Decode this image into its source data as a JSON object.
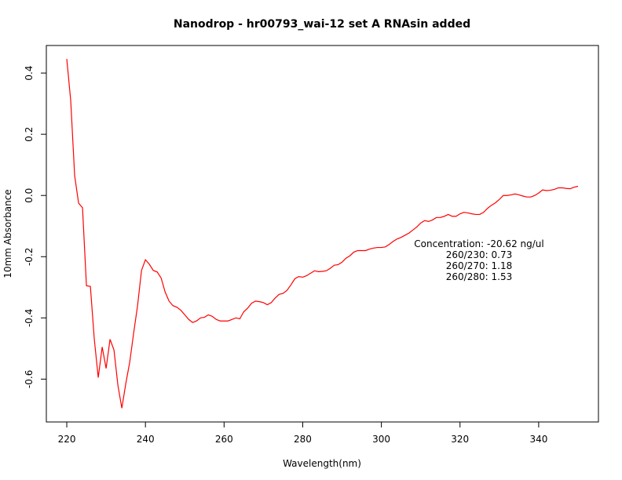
{
  "chart_data": {
    "type": "line",
    "title": "Nanodrop - hr00793_wai-12 set A RNAsin added",
    "x_label": "Wavelength(nm)",
    "y_label": "10mm Absorbance",
    "annotations": [
      "Concentration: -20.62 ng/ul",
      "260/230: 0.73",
      "260/270: 1.18",
      "260/280: 1.53"
    ],
    "x": [
      220,
      221,
      222,
      223,
      224,
      225,
      226,
      227,
      228,
      229,
      230,
      231,
      232,
      233,
      234,
      235,
      236,
      237,
      238,
      239,
      240,
      241,
      242,
      243,
      244,
      245,
      246,
      247,
      248,
      249,
      250,
      251,
      252,
      253,
      254,
      255,
      256,
      257,
      258,
      259,
      260,
      261,
      262,
      263,
      264,
      265,
      266,
      267,
      268,
      269,
      270,
      271,
      272,
      273,
      274,
      275,
      276,
      277,
      278,
      279,
      280,
      281,
      282,
      283,
      284,
      285,
      286,
      287,
      288,
      289,
      290,
      291,
      292,
      293,
      294,
      295,
      296,
      297,
      298,
      299,
      300,
      301,
      302,
      303,
      304,
      305,
      306,
      307,
      308,
      309,
      310,
      311,
      312,
      313,
      314,
      315,
      316,
      317,
      318,
      319,
      320,
      321,
      322,
      323,
      324,
      325,
      326,
      327,
      328,
      329,
      330,
      331,
      332,
      333,
      334,
      335,
      336,
      337,
      338,
      339,
      340,
      341,
      342,
      343,
      344,
      345,
      346,
      347,
      348,
      349,
      350
    ],
    "series": [
      {
        "color": "#ff0000",
        "values": [
          0.446,
          0.31,
          0.065,
          -0.025,
          -0.04,
          -0.295,
          -0.297,
          -0.47,
          -0.595,
          -0.495,
          -0.565,
          -0.47,
          -0.505,
          -0.62,
          -0.695,
          -0.615,
          -0.545,
          -0.45,
          -0.36,
          -0.245,
          -0.21,
          -0.225,
          -0.245,
          -0.25,
          -0.27,
          -0.315,
          -0.345,
          -0.36,
          -0.365,
          -0.375,
          -0.39,
          -0.405,
          -0.415,
          -0.41,
          -0.4,
          -0.398,
          -0.39,
          -0.395,
          -0.405,
          -0.41,
          -0.41,
          -0.41,
          -0.405,
          -0.4,
          -0.403,
          -0.38,
          -0.368,
          -0.352,
          -0.345,
          -0.347,
          -0.35,
          -0.357,
          -0.35,
          -0.335,
          -0.323,
          -0.32,
          -0.31,
          -0.292,
          -0.272,
          -0.265,
          -0.267,
          -0.262,
          -0.254,
          -0.246,
          -0.249,
          -0.248,
          -0.246,
          -0.238,
          -0.228,
          -0.226,
          -0.218,
          -0.205,
          -0.197,
          -0.185,
          -0.18,
          -0.18,
          -0.18,
          -0.175,
          -0.172,
          -0.17,
          -0.17,
          -0.168,
          -0.16,
          -0.15,
          -0.142,
          -0.137,
          -0.13,
          -0.123,
          -0.113,
          -0.103,
          -0.09,
          -0.082,
          -0.085,
          -0.08,
          -0.072,
          -0.072,
          -0.068,
          -0.062,
          -0.068,
          -0.068,
          -0.06,
          -0.055,
          -0.057,
          -0.06,
          -0.062,
          -0.062,
          -0.055,
          -0.042,
          -0.032,
          -0.024,
          -0.013,
          0.0,
          0.0,
          0.002,
          0.005,
          0.002,
          -0.002,
          -0.005,
          -0.005,
          0.0,
          0.008,
          0.018,
          0.016,
          0.017,
          0.02,
          0.025,
          0.025,
          0.023,
          0.022,
          0.027,
          0.03
        ]
      }
    ],
    "xlim": [
      214.8,
      355.2
    ],
    "ylim": [
      -0.74,
      0.49
    ],
    "xticks": [
      220,
      240,
      260,
      280,
      300,
      320,
      340
    ],
    "yticks": [
      -0.6,
      -0.4,
      -0.2,
      {
        "value": 0,
        "label": "0.0"
      },
      0.2,
      0.4
    ]
  }
}
